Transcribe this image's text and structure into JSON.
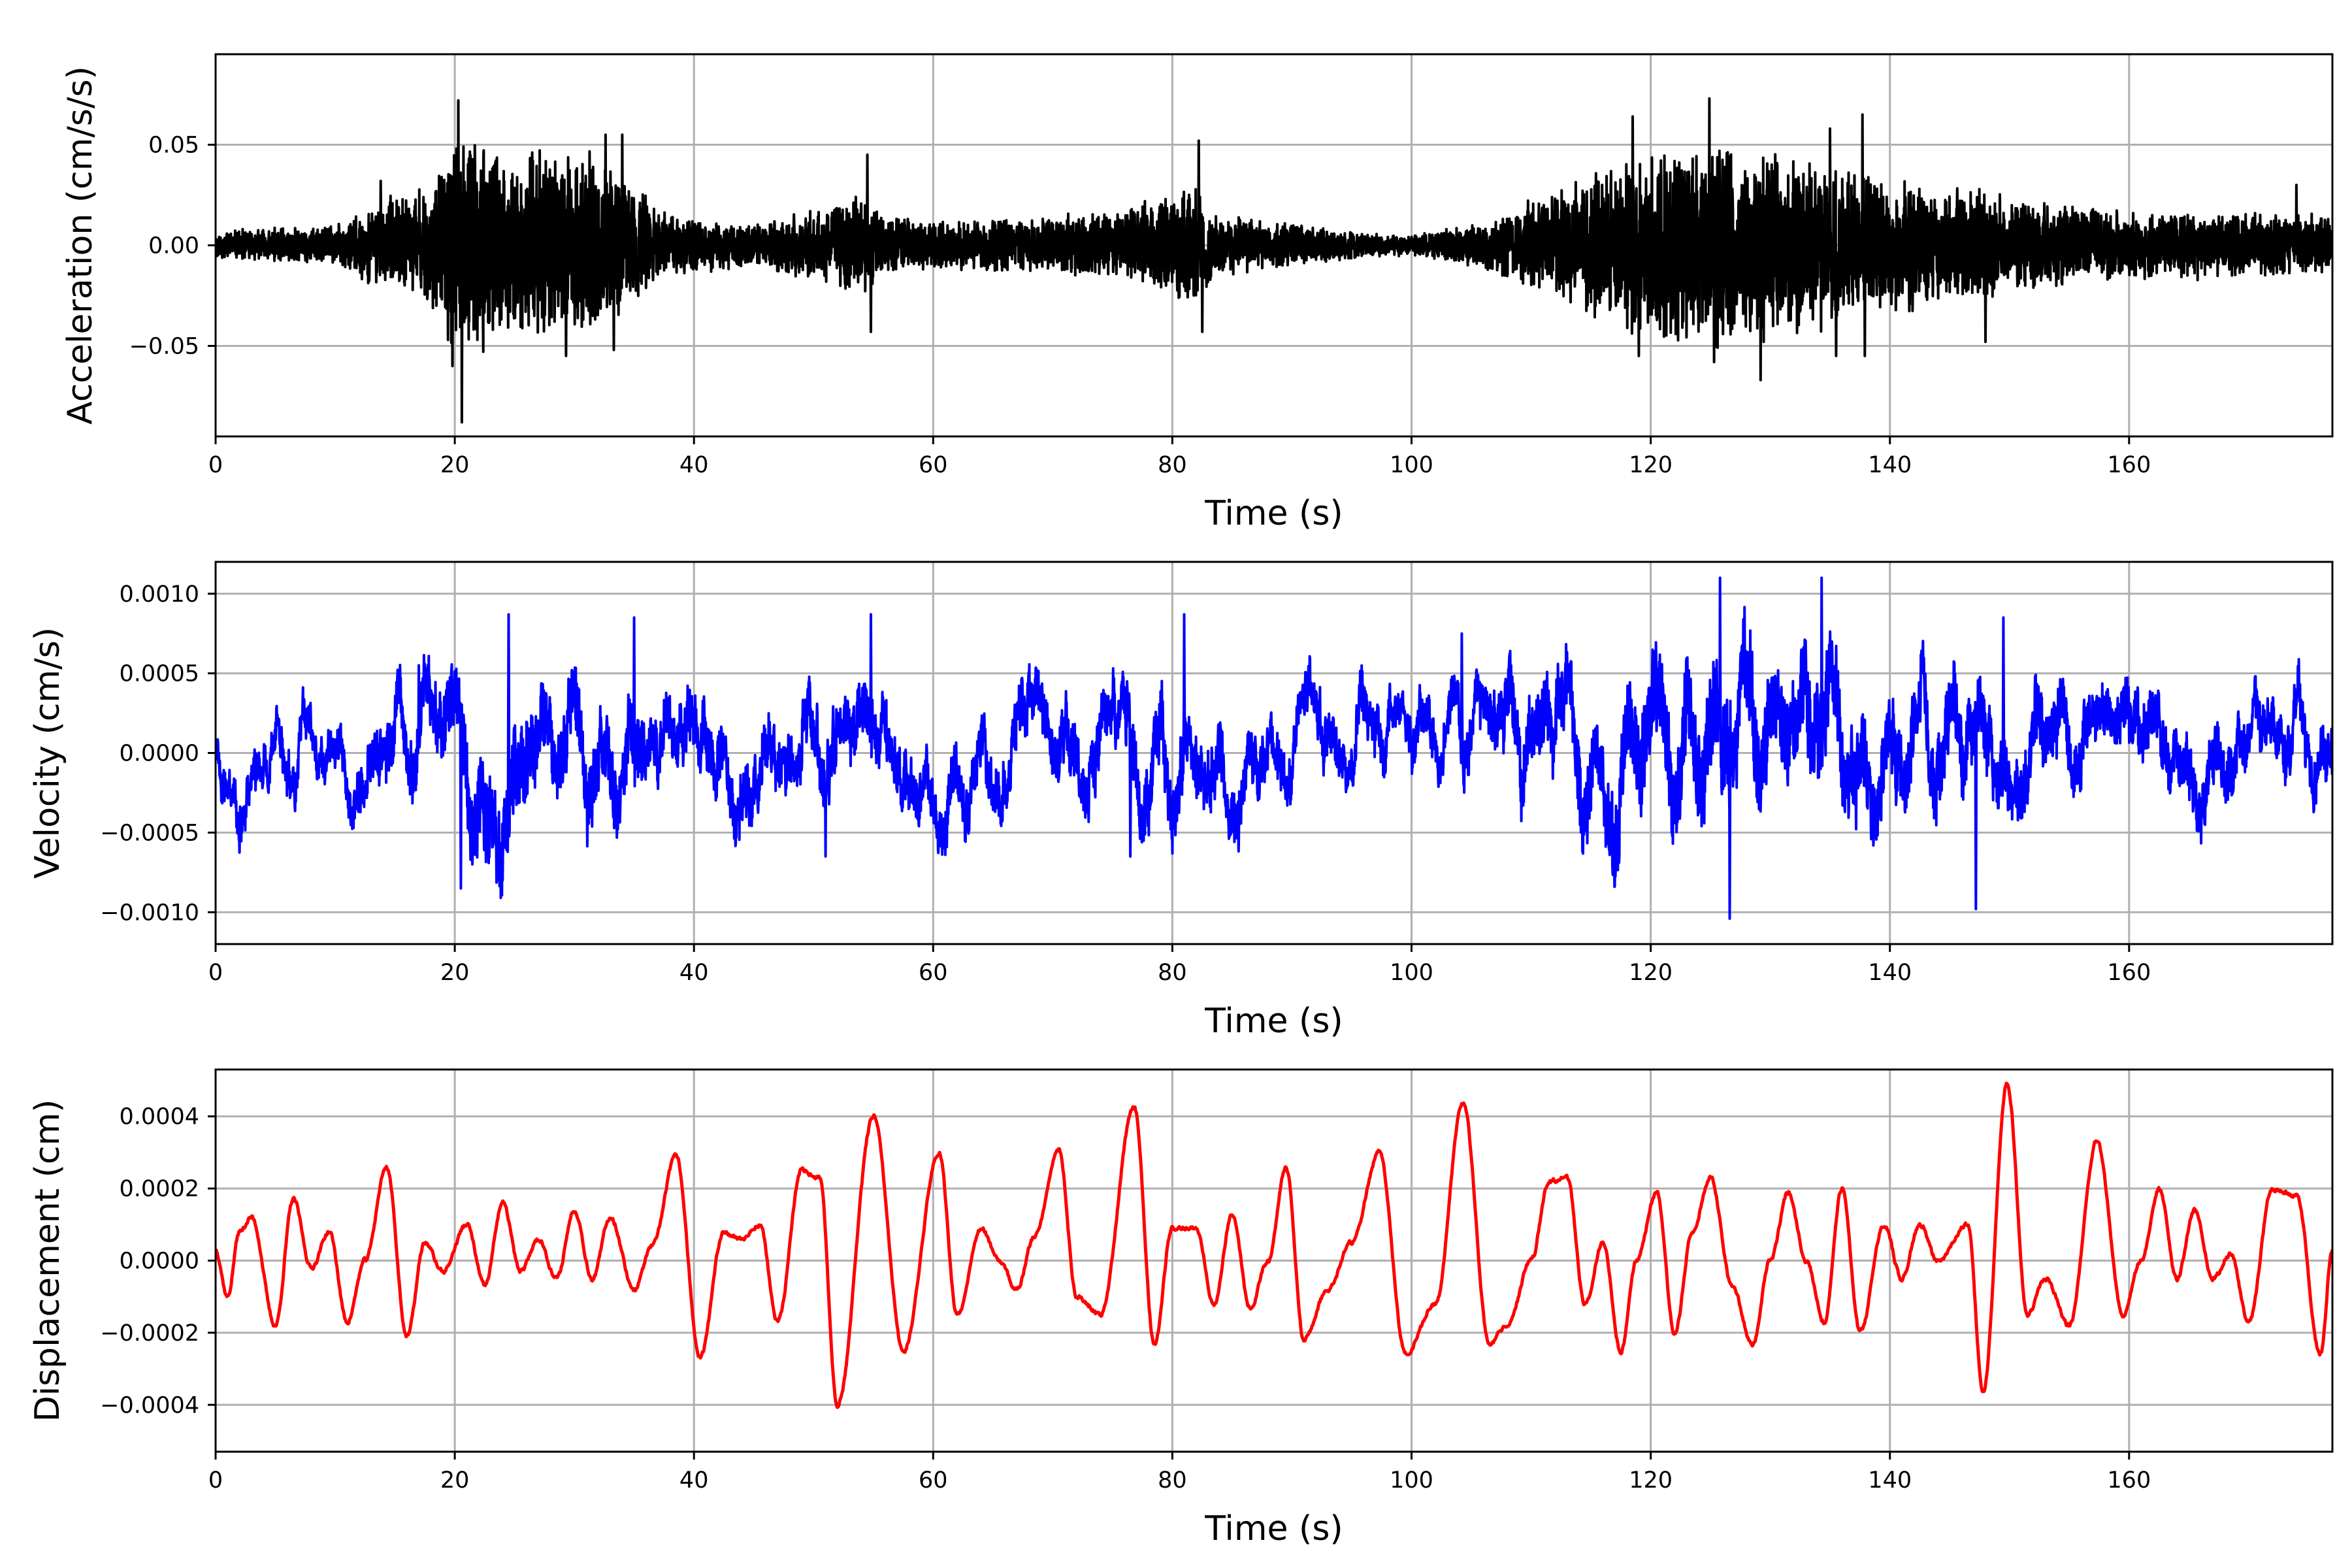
{
  "chart_data": [
    {
      "type": "line",
      "xlabel": "Time (s)",
      "ylabel": "Acceleration (cm/s/s)",
      "xlim": [
        0,
        177
      ],
      "ylim": [
        -0.095,
        0.095
      ],
      "xticks": [
        0,
        20,
        40,
        60,
        80,
        100,
        120,
        140,
        160
      ],
      "xtick_labels": [
        "0",
        "20",
        "40",
        "60",
        "80",
        "100",
        "120",
        "140",
        "160"
      ],
      "yticks": [
        -0.05,
        0.0,
        0.05
      ],
      "ytick_labels": [
        "−0.05",
        "0.00",
        "0.05"
      ],
      "grid": true,
      "color": "#000000",
      "signal": "noise",
      "envelope": [
        [
          0,
          0.006
        ],
        [
          10,
          0.008
        ],
        [
          14,
          0.018
        ],
        [
          18,
          0.025
        ],
        [
          20.5,
          0.05
        ],
        [
          24,
          0.035
        ],
        [
          28,
          0.04
        ],
        [
          31,
          0.04
        ],
        [
          34,
          0.028
        ],
        [
          38,
          0.012
        ],
        [
          45,
          0.009
        ],
        [
          50,
          0.014
        ],
        [
          54,
          0.02
        ],
        [
          56,
          0.012
        ],
        [
          62,
          0.01
        ],
        [
          70,
          0.012
        ],
        [
          76,
          0.015
        ],
        [
          80,
          0.022
        ],
        [
          82,
          0.025
        ],
        [
          84,
          0.012
        ],
        [
          90,
          0.009
        ],
        [
          96,
          0.005
        ],
        [
          100,
          0.004
        ],
        [
          106,
          0.01
        ],
        [
          112,
          0.022
        ],
        [
          116,
          0.032
        ],
        [
          120,
          0.04
        ],
        [
          125,
          0.042
        ],
        [
          130,
          0.038
        ],
        [
          136,
          0.032
        ],
        [
          142,
          0.026
        ],
        [
          150,
          0.02
        ],
        [
          156,
          0.016
        ],
        [
          162,
          0.014
        ],
        [
          170,
          0.013
        ],
        [
          177,
          0.013
        ]
      ],
      "peaks": [
        [
          20.3,
          0.072
        ],
        [
          20.6,
          -0.088
        ],
        [
          19.8,
          -0.06
        ],
        [
          13.8,
          0.032
        ],
        [
          29.3,
          -0.055
        ],
        [
          32.6,
          0.055
        ],
        [
          34.0,
          0.055
        ],
        [
          33.3,
          -0.052
        ],
        [
          54.5,
          0.045
        ],
        [
          54.8,
          -0.043
        ],
        [
          82.2,
          0.052
        ],
        [
          82.5,
          -0.043
        ],
        [
          118.5,
          0.064
        ],
        [
          119.0,
          -0.055
        ],
        [
          124.9,
          0.073
        ],
        [
          125.3,
          -0.058
        ],
        [
          129.2,
          -0.067
        ],
        [
          135.0,
          0.058
        ],
        [
          135.5,
          -0.055
        ],
        [
          137.7,
          0.065
        ],
        [
          137.9,
          -0.055
        ],
        [
          148.0,
          -0.048
        ],
        [
          174.0,
          0.03
        ]
      ],
      "samples": 9000,
      "seed": 11
    },
    {
      "type": "line",
      "xlabel": "Time (s)",
      "ylabel": "Velocity (cm/s)",
      "xlim": [
        0,
        177
      ],
      "ylim": [
        -0.0012,
        0.0012
      ],
      "xticks": [
        0,
        20,
        40,
        60,
        80,
        100,
        120,
        140,
        160
      ],
      "xtick_labels": [
        "0",
        "20",
        "40",
        "60",
        "80",
        "100",
        "120",
        "140",
        "160"
      ],
      "yticks": [
        -0.001,
        -0.0005,
        0.0,
        0.0005,
        0.001
      ],
      "ytick_labels": [
        "−0.0010",
        "−0.0005",
        "0.0000",
        "0.0005",
        "0.0010"
      ],
      "grid": true,
      "color": "#0000ff",
      "signal": "mixed",
      "envelope": [
        [
          0,
          0.00012
        ],
        [
          10,
          0.00014
        ],
        [
          18,
          0.00025
        ],
        [
          22,
          0.00035
        ],
        [
          28,
          0.0003
        ],
        [
          34,
          0.00028
        ],
        [
          40,
          0.0002
        ],
        [
          50,
          0.00022
        ],
        [
          60,
          0.0002
        ],
        [
          70,
          0.0002
        ],
        [
          80,
          0.00025
        ],
        [
          90,
          0.00018
        ],
        [
          100,
          0.00015
        ],
        [
          110,
          0.00025
        ],
        [
          118,
          0.00035
        ],
        [
          125,
          0.0004
        ],
        [
          132,
          0.00038
        ],
        [
          140,
          0.00033
        ],
        [
          150,
          0.00025
        ],
        [
          160,
          0.0002
        ],
        [
          177,
          0.00018
        ]
      ],
      "peaks": [
        [
          20.5,
          -0.00085
        ],
        [
          24.5,
          0.00087
        ],
        [
          54.8,
          0.00087
        ],
        [
          81.0,
          0.00087
        ],
        [
          104.2,
          0.00075
        ],
        [
          125.8,
          0.0011
        ],
        [
          126.6,
          -0.00104
        ],
        [
          134.3,
          0.0011
        ],
        [
          147.2,
          -0.00098
        ],
        [
          149.5,
          0.00085
        ],
        [
          35.0,
          0.00085
        ],
        [
          17.0,
          0.00055
        ],
        [
          51.0,
          -0.00065
        ],
        [
          76.5,
          -0.00065
        ]
      ],
      "samples": 7000,
      "seed": 23
    },
    {
      "type": "line",
      "xlabel": "Time (s)",
      "ylabel": "Displacement (cm)",
      "xlim": [
        0,
        177
      ],
      "ylim": [
        -0.00053,
        0.00053
      ],
      "xticks": [
        0,
        20,
        40,
        60,
        80,
        100,
        120,
        140,
        160
      ],
      "xtick_labels": [
        "0",
        "20",
        "40",
        "60",
        "80",
        "100",
        "120",
        "140",
        "160"
      ],
      "yticks": [
        -0.0004,
        -0.0002,
        0.0,
        0.0002,
        0.0004
      ],
      "ytick_labels": [
        "−0.0004",
        "−0.0002",
        "0.0000",
        "0.0002",
        "0.0004"
      ],
      "grid": true,
      "color": "#ff0000",
      "signal": "smooth",
      "x": [
        0,
        1,
        2,
        3,
        5,
        6.5,
        8,
        9.5,
        11,
        12.5,
        14.3,
        16,
        17.5,
        19,
        21,
        22.5,
        24,
        25.5,
        27,
        28.5,
        30,
        31.5,
        33,
        35,
        36.5,
        38.5,
        40.5,
        42.5,
        44,
        45.5,
        47,
        49,
        50.5,
        52,
        55,
        57.5,
        60.5,
        62,
        64,
        65.5,
        67,
        68.5,
        70.5,
        72,
        74,
        76.8,
        78.5,
        80,
        82,
        83.5,
        85,
        86.5,
        88,
        89.5,
        91,
        93,
        95,
        97.3,
        99.5,
        102,
        104.3,
        106.5,
        108,
        110,
        111.5,
        113,
        114.5,
        116,
        117.5,
        118.8,
        120.5,
        122,
        123.5,
        125,
        126.8,
        128.5,
        130,
        131.5,
        133,
        134.5,
        136,
        137.5,
        139.5,
        141,
        142.5,
        144,
        146.5,
        147.8,
        149.8,
        151.5,
        153,
        155,
        157.3,
        159.5,
        161,
        162.5,
        164,
        165.5,
        167,
        168.5,
        170,
        172,
        174,
        176,
        177
      ],
      "y": [
        3e-05,
        -0.0001,
        8e-05,
        0.00012,
        -0.00018,
        0.00017,
        -2e-05,
        8e-05,
        -0.00017,
        0.0,
        0.00026,
        -0.00021,
        5e-05,
        -3e-05,
        0.0001,
        -7e-05,
        0.00016,
        -3e-05,
        6e-05,
        -5e-05,
        0.00014,
        -5e-05,
        0.00012,
        -8e-05,
        4e-05,
        0.00029,
        -0.00027,
        8e-05,
        6e-05,
        0.0001,
        -0.00017,
        0.00025,
        0.00023,
        -0.0004,
        0.0004,
        -0.00025,
        0.0003,
        -0.00015,
        9e-05,
        0.0,
        -8e-05,
        7e-05,
        0.00031,
        -0.0001,
        -0.00015,
        0.00043,
        -0.00023,
        9e-05,
        9e-05,
        -0.00012,
        0.00013,
        -0.00013,
        0.0,
        0.00026,
        -0.00022,
        -8e-05,
        5e-05,
        0.0003,
        -0.00026,
        -0.00012,
        0.00044,
        -0.00023,
        -0.00018,
        0.0,
        0.00022,
        0.00023,
        -0.00012,
        5e-05,
        -0.00025,
        0.0,
        0.00019,
        -0.0002,
        8e-05,
        0.00023,
        -7e-05,
        -0.00023,
        0.0,
        0.00019,
        0.0,
        -0.00017,
        0.0002,
        -0.0002,
        0.0001,
        -5e-05,
        0.0001,
        0.0,
        0.0001,
        -0.00036,
        0.00049,
        -0.00015,
        -5e-05,
        -0.00018,
        0.00033,
        -0.00015,
        0.0,
        0.0002,
        -5e-05,
        0.00014,
        -5e-05,
        2e-05,
        -0.00017,
        0.0002,
        0.00018,
        -0.00026,
        3e-05
      ],
      "jitter": 1.2e-05,
      "samples": 3000,
      "seed": 37
    }
  ]
}
